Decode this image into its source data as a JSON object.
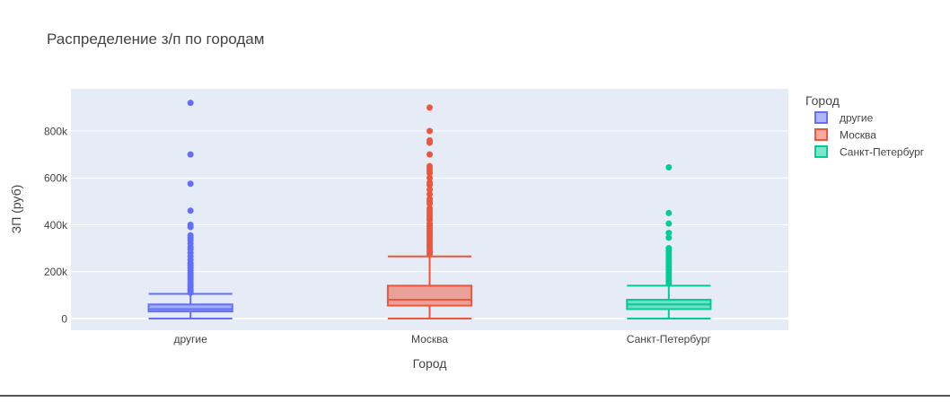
{
  "chart_data": {
    "type": "box",
    "title": "Распределение з/п по городам",
    "xlabel": "Город",
    "ylabel": "ЗП (руб)",
    "categories": [
      "другие",
      "Москва",
      "Санкт-Петербург"
    ],
    "ylim": [
      -50000,
      980000
    ],
    "yticks": [
      0,
      200000,
      400000,
      600000,
      800000
    ],
    "yticklabels": [
      "0",
      "200k",
      "400k",
      "600k",
      "800k"
    ],
    "grid": true,
    "legend_title": "Город",
    "legend_position": "right",
    "series": [
      {
        "name": "другие",
        "color": "#636EFA",
        "fill": "rgba(99,110,250,0.5)",
        "min": 0,
        "q1": 30000,
        "median": 40000,
        "q3": 60000,
        "max": 105000,
        "outliers": [
          110000,
          118000,
          125000,
          135000,
          145000,
          155000,
          165000,
          175000,
          185000,
          195000,
          205000,
          215000,
          225000,
          235000,
          250000,
          265000,
          280000,
          295000,
          305000,
          320000,
          335000,
          345000,
          355000,
          390000,
          400000,
          460000,
          575000,
          700000,
          920000
        ]
      },
      {
        "name": "Москва",
        "color": "#EF553B",
        "fill": "rgba(239,85,59,0.5)",
        "min": 0,
        "q1": 55000,
        "median": 80000,
        "q3": 140000,
        "max": 265000,
        "outliers": [
          275000,
          285000,
          295000,
          305000,
          315000,
          325000,
          335000,
          345000,
          355000,
          365000,
          375000,
          385000,
          395000,
          405000,
          420000,
          430000,
          440000,
          450000,
          460000,
          470000,
          490000,
          500000,
          510000,
          530000,
          550000,
          570000,
          580000,
          600000,
          620000,
          630000,
          640000,
          650000,
          700000,
          750000,
          760000,
          800000,
          900000
        ]
      },
      {
        "name": "Санкт-Петербург",
        "color": "#00CC96",
        "fill": "rgba(0,204,150,0.5)",
        "min": 0,
        "q1": 40000,
        "median": 60000,
        "q3": 80000,
        "max": 140000,
        "outliers": [
          150000,
          160000,
          170000,
          180000,
          190000,
          200000,
          210000,
          220000,
          230000,
          240000,
          250000,
          260000,
          270000,
          280000,
          290000,
          300000,
          345000,
          365000,
          405000,
          450000,
          645000
        ]
      }
    ]
  }
}
